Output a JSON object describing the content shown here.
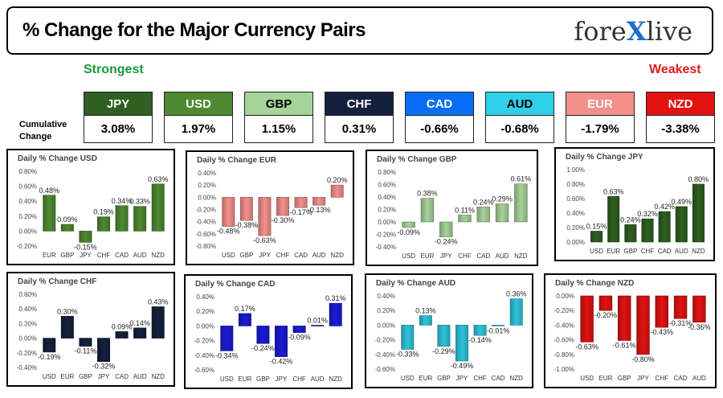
{
  "header": {
    "title": "% Change for the Major Currency Pairs",
    "logo_left": "fore",
    "logo_mid": "X",
    "logo_right": "live"
  },
  "legend": {
    "strongest": "Strongest",
    "weakest": "Weakest",
    "cumulative_label": "Cumulative Change"
  },
  "currencies": [
    {
      "name": "JPY",
      "value": "3.08%",
      "bg": "#2f5f22",
      "fg": "#ffffff"
    },
    {
      "name": "USD",
      "value": "1.97%",
      "bg": "#4e8a31",
      "fg": "#ffffff"
    },
    {
      "name": "GBP",
      "value": "1.15%",
      "bg": "#a6d39a",
      "fg": "#000000"
    },
    {
      "name": "CHF",
      "value": "0.31%",
      "bg": "#14213d",
      "fg": "#ffffff"
    },
    {
      "name": "CAD",
      "value": "-0.66%",
      "bg": "#0a6ef5",
      "fg": "#ffffff"
    },
    {
      "name": "AUD",
      "value": "-0.68%",
      "bg": "#2ed0ea",
      "fg": "#000000"
    },
    {
      "name": "EUR",
      "value": "-1.79%",
      "bg": "#f4908c",
      "fg": "#ffffff"
    },
    {
      "name": "NZD",
      "value": "-3.38%",
      "bg": "#e21212",
      "fg": "#ffffff"
    }
  ],
  "chart_data": [
    {
      "type": "bar",
      "title": "Daily % Change USD",
      "color": "#4e8a31",
      "categories": [
        "EUR",
        "GBP",
        "JPY",
        "CHF",
        "CAD",
        "AUD",
        "NZD"
      ],
      "values": [
        0.48,
        0.09,
        -0.15,
        0.19,
        0.34,
        0.33,
        0.63
      ],
      "labels": [
        "0.48%",
        "0.09%",
        "-0.15%",
        "0.19%",
        "0.34%",
        "0.33%",
        "0.63%"
      ],
      "ylim": [
        -0.2,
        0.8
      ],
      "ticks": [
        -0.2,
        0.0,
        0.2,
        0.4,
        0.6,
        0.8
      ],
      "tick_labels": [
        "-0.20%",
        "0.00%",
        "0.20%",
        "0.40%",
        "0.60%",
        "0.80%"
      ]
    },
    {
      "type": "bar",
      "title": "Daily % Change EUR",
      "color": "#f4908c",
      "categories": [
        "USD",
        "GBP",
        "JPY",
        "CHF",
        "CAD",
        "AUD",
        "NZD"
      ],
      "values": [
        -0.48,
        -0.38,
        -0.63,
        -0.3,
        -0.17,
        -0.13,
        0.2
      ],
      "labels": [
        "-0.48%",
        "-0.38%",
        "-0.63%",
        "-0.30%",
        "-0.17%",
        "-0.13%",
        "0.20%"
      ],
      "ylim": [
        -0.8,
        0.4
      ],
      "ticks": [
        -0.8,
        -0.6,
        -0.4,
        -0.2,
        0.0,
        0.2,
        0.4
      ],
      "tick_labels": [
        "-0.80%",
        "-0.60%",
        "-0.40%",
        "-0.20%",
        "0.00%",
        "0.20%",
        "0.40%"
      ]
    },
    {
      "type": "bar",
      "title": "Daily % Change GBP",
      "color": "#a6d39a",
      "categories": [
        "USD",
        "EUR",
        "JPY",
        "CHF",
        "CAD",
        "AUD",
        "NZD"
      ],
      "values": [
        -0.09,
        0.38,
        -0.24,
        0.11,
        0.24,
        0.29,
        0.61
      ],
      "labels": [
        "-0.09%",
        "0.38%",
        "-0.24%",
        "0.11%",
        "0.24%",
        "0.29%",
        "0.61%"
      ],
      "ylim": [
        -0.4,
        0.8
      ],
      "ticks": [
        -0.4,
        -0.2,
        0.0,
        0.2,
        0.4,
        0.6,
        0.8
      ],
      "tick_labels": [
        "-0.40%",
        "-0.20%",
        "0.00%",
        "0.20%",
        "0.40%",
        "0.60%",
        "0.80%"
      ]
    },
    {
      "type": "bar",
      "title": "Daily % Change JPY",
      "color": "#2f5f22",
      "categories": [
        "USD",
        "EUR",
        "GBP",
        "CHF",
        "CAD",
        "AUD",
        "NZD"
      ],
      "values": [
        0.15,
        0.63,
        0.24,
        0.32,
        0.42,
        0.49,
        0.8
      ],
      "labels": [
        "0.15%",
        "0.63%",
        "0.24%",
        "0.32%",
        "0.42%",
        "0.49%",
        "0.80%"
      ],
      "ylim": [
        0.0,
        1.0
      ],
      "ticks": [
        0.0,
        0.2,
        0.4,
        0.6,
        0.8,
        1.0
      ],
      "tick_labels": [
        "0.00%",
        "0.20%",
        "0.40%",
        "0.60%",
        "0.80%",
        "1.00%"
      ]
    },
    {
      "type": "bar",
      "title": "Daily % Change CHF",
      "color": "#14213d",
      "categories": [
        "USD",
        "EUR",
        "GBP",
        "JPY",
        "CAD",
        "AUD",
        "NZD"
      ],
      "values": [
        -0.19,
        0.3,
        -0.11,
        -0.32,
        0.09,
        0.14,
        0.43
      ],
      "labels": [
        "-0.19%",
        "0.30%",
        "-0.11%",
        "-0.32%",
        "0.09%",
        "0.14%",
        "0.43%"
      ],
      "ylim": [
        -0.4,
        0.6
      ],
      "ticks": [
        -0.4,
        -0.2,
        0.0,
        0.2,
        0.4,
        0.6
      ],
      "tick_labels": [
        "-0.40%",
        "-0.20%",
        "0.00%",
        "0.20%",
        "0.40%",
        "0.60%"
      ]
    },
    {
      "type": "bar",
      "title": "Daily % Change CAD",
      "color": "#1a1ad6",
      "categories": [
        "USD",
        "EUR",
        "GBP",
        "JPY",
        "CHF",
        "AUD",
        "NZD"
      ],
      "values": [
        -0.34,
        0.17,
        -0.24,
        -0.42,
        -0.09,
        0.01,
        0.31
      ],
      "labels": [
        "-0.34%",
        "0.17%",
        "-0.24%",
        "-0.42%",
        "-0.09%",
        "0.01%",
        "0.31%"
      ],
      "ylim": [
        -0.6,
        0.4
      ],
      "ticks": [
        -0.6,
        -0.4,
        -0.2,
        0.0,
        0.2,
        0.4
      ],
      "tick_labels": [
        "-0.60%",
        "-0.40%",
        "-0.20%",
        "0.00%",
        "0.20%",
        "0.40%"
      ]
    },
    {
      "type": "bar",
      "title": "Daily % Change AUD",
      "color": "#2ec4dc",
      "categories": [
        "USD",
        "EUR",
        "GBP",
        "JPY",
        "CHF",
        "CAD",
        "NZD"
      ],
      "values": [
        -0.33,
        0.13,
        -0.29,
        -0.49,
        -0.14,
        -0.01,
        0.36
      ],
      "labels": [
        "-0.33%",
        "0.13%",
        "-0.29%",
        "-0.49%",
        "-0.14%",
        "-0.01%",
        "0.36%"
      ],
      "ylim": [
        -0.6,
        0.4
      ],
      "ticks": [
        -0.6,
        -0.4,
        -0.2,
        0.0,
        0.2,
        0.4
      ],
      "tick_labels": [
        "-0.60%",
        "-0.40%",
        "-0.20%",
        "0.00%",
        "0.20%",
        "0.40%"
      ]
    },
    {
      "type": "bar",
      "title": "Daily % Change NZD",
      "color": "#e21212",
      "categories": [
        "USD",
        "EUR",
        "GBP",
        "JPY",
        "CHF",
        "CAD",
        "AUD"
      ],
      "values": [
        -0.63,
        -0.2,
        -0.61,
        -0.8,
        -0.43,
        -0.31,
        -0.36
      ],
      "labels": [
        "-0.63%",
        "-0.20%",
        "-0.61%",
        "-0.80%",
        "-0.43%",
        "-0.31%",
        "-0.36%"
      ],
      "ylim": [
        -1.0,
        0.0
      ],
      "ticks": [
        -1.0,
        -0.8,
        -0.6,
        -0.4,
        -0.2,
        0.0
      ],
      "tick_labels": [
        "-1.00%",
        "-0.80%",
        "-0.60%",
        "-0.40%",
        "-0.20%",
        "0.00%"
      ]
    }
  ]
}
